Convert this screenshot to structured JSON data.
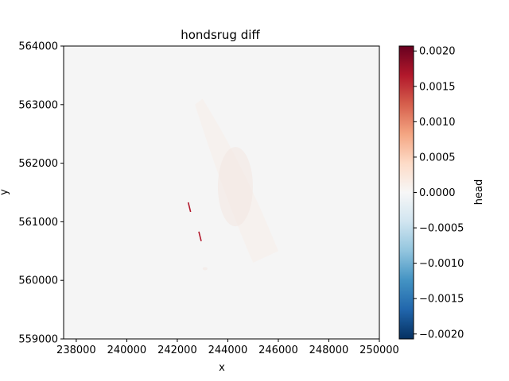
{
  "chart_data": {
    "type": "heatmap",
    "title": "hondsrug diff",
    "xlabel": "x",
    "ylabel": "y",
    "xlim": [
      237500,
      250000
    ],
    "ylim": [
      559000,
      564000
    ],
    "x_ticks": [
      238000,
      240000,
      242000,
      244000,
      246000,
      248000,
      250000
    ],
    "x_tick_labels": [
      "238000",
      "240000",
      "242000",
      "244000",
      "246000",
      "248000",
      "250000"
    ],
    "y_ticks": [
      559000,
      560000,
      561000,
      562000,
      563000,
      564000
    ],
    "y_tick_labels": [
      "559000",
      "560000",
      "561000",
      "562000",
      "563000",
      "564000"
    ],
    "grid": false,
    "background_value": 0.0,
    "colormap": "RdBu_r",
    "colormap_stops": [
      "#053061",
      "#2166ac",
      "#4393c3",
      "#92c5de",
      "#d1e5f0",
      "#f7f7f7",
      "#fddbc7",
      "#f4a582",
      "#d6604d",
      "#b2182b",
      "#67001f"
    ],
    "colorbar": {
      "label": "head",
      "vmin": -0.00207,
      "vmax": 0.00207,
      "ticks": [
        -0.002,
        -0.0015,
        -0.001,
        -0.0005,
        0.0,
        0.0005,
        0.001,
        0.0015,
        0.002
      ],
      "tick_labels": [
        "−0.0020",
        "−0.0015",
        "−0.0010",
        "−0.0005",
        "0.0000",
        "0.0005",
        "0.0010",
        "0.0015",
        "0.0020"
      ]
    },
    "hotspots": [
      {
        "x": 242480,
        "y": 561250,
        "value": 0.0018
      },
      {
        "x": 242900,
        "y": 560750,
        "value": 0.0016
      },
      {
        "x": 244300,
        "y": 561600,
        "value": 5e-05
      },
      {
        "x": 243100,
        "y": 560200,
        "value": 2e-05
      }
    ]
  }
}
